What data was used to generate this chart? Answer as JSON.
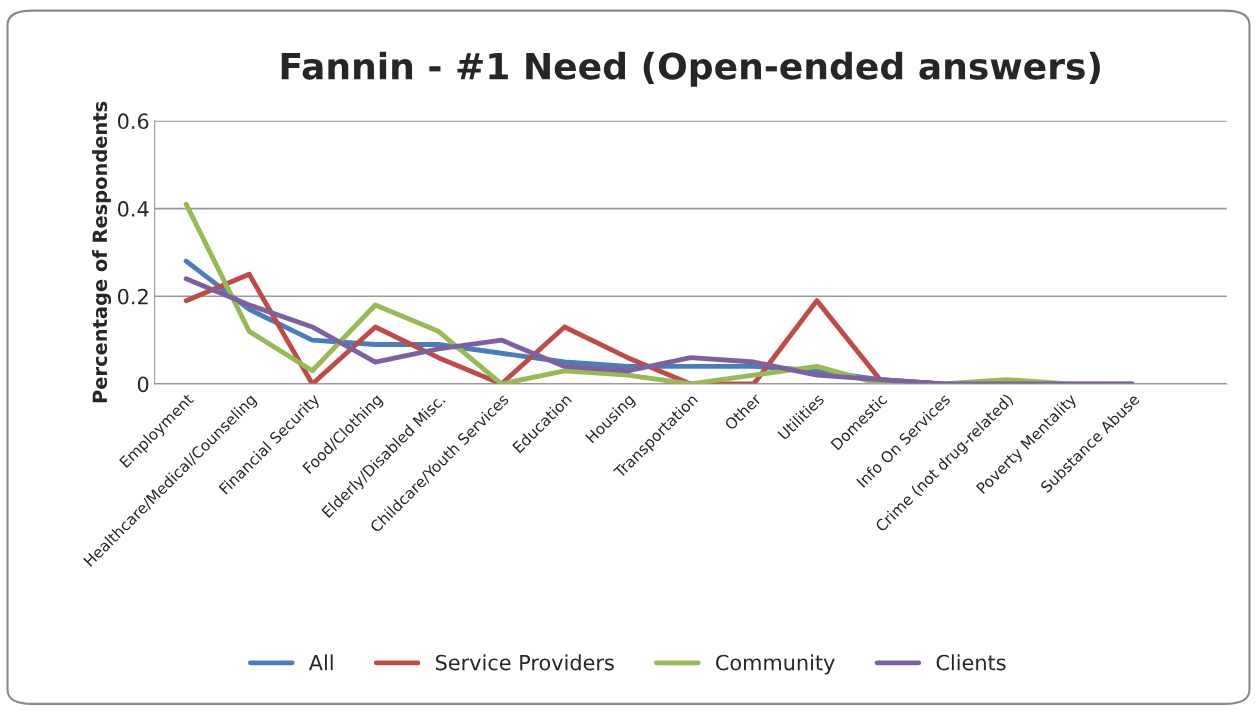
{
  "chart_data": {
    "type": "line",
    "title": "Fannin - #1 Need (Open-ended answers)",
    "ylabel": "Percentage of Respondents",
    "categories": [
      "Employment",
      "Healthcare/Medical/Counseling",
      "Financial Security",
      "Food/Clothing",
      "Elderly/Disabled Misc.",
      "Childcare/Youth Services",
      "Education",
      "Housing",
      "Transportation",
      "Other",
      "Utilities",
      "Domestic",
      "Info On Services",
      "Crime (not drug-related)",
      "Poverty Mentality",
      "Substance Abuse"
    ],
    "series": [
      {
        "name": "All",
        "color": "#4a7ebb",
        "values": [
          0.28,
          0.17,
          0.1,
          0.09,
          0.09,
          0.07,
          0.05,
          0.04,
          0.04,
          0.04,
          0.03,
          0.01,
          0,
          null,
          null,
          null
        ]
      },
      {
        "name": "Service Providers",
        "color": "#be4b48",
        "values": [
          0.19,
          0.25,
          0,
          0.13,
          0.06,
          0,
          0.13,
          0.06,
          0,
          0,
          0.19,
          0.01,
          0,
          null,
          null,
          null
        ]
      },
      {
        "name": "Community",
        "color": "#98b954",
        "values": [
          0.41,
          0.12,
          0.03,
          0.18,
          0.12,
          0,
          0.03,
          0.02,
          0,
          0.02,
          0.04,
          0,
          0,
          0.01,
          0,
          0
        ]
      },
      {
        "name": "Clients",
        "color": "#7d60a0",
        "values": [
          0.24,
          0.18,
          0.13,
          0.05,
          0.08,
          0.1,
          0.04,
          0.03,
          0.06,
          0.05,
          0.02,
          0.01,
          0,
          0,
          0,
          0
        ]
      }
    ],
    "ylim": [
      0,
      0.6
    ],
    "yticks": [
      {
        "value": 0,
        "label": "0"
      },
      0.2,
      0.4,
      0.6
    ],
    "grid": "y",
    "legend": "bottom",
    "marker": "none",
    "line_style": "solid"
  }
}
